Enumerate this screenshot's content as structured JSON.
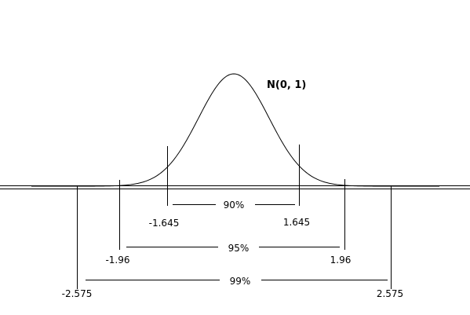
{
  "distribution_label": "N(0, 1)",
  "intervals": [
    {
      "pct_label": "90%",
      "lower_label": "-1.645",
      "upper_label": "1.645",
      "z": 1.645
    },
    {
      "pct_label": "95%",
      "lower_label": "-1.96",
      "upper_label": "1.96",
      "z": 1.96
    },
    {
      "pct_label": "99%",
      "lower_label": "-2.575",
      "upper_label": "2.575",
      "z": 2.575
    }
  ],
  "colors": {
    "ink": "#000000",
    "background": "#ffffff"
  }
}
